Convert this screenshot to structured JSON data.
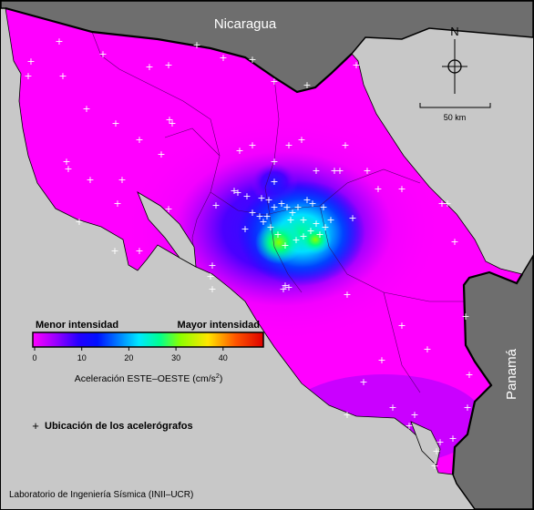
{
  "neighbors": {
    "north": "Nicaragua",
    "south_east": "Panamá"
  },
  "north_arrow": {
    "label": "N",
    "icon": "compass-crosshair-icon"
  },
  "scale_bar": {
    "label": "50 km"
  },
  "legend": {
    "low_label": "Menor intensidad",
    "high_label": "Mayor intensidad",
    "ticks": [
      "0",
      "10",
      "20",
      "30",
      "40"
    ],
    "axis_title": "Aceleración ESTE–OESTE (cm/s",
    "axis_unit_sup": "2",
    "axis_title_end": ")",
    "gradient_colors": [
      "#ff00ff",
      "#9a00ff",
      "#2400ff",
      "#0010ff",
      "#0088ff",
      "#00e8ff",
      "#00ff90",
      "#8cff00",
      "#ffe600",
      "#ff5500",
      "#dd0000"
    ]
  },
  "stations_legend": {
    "marker": "+",
    "label": "Ubicación de los acelerógrafos"
  },
  "credit": "Laboratorio de Ingeniería Sísmica (INII–UCR)",
  "colors": {
    "land_low": "#ff00ff",
    "neighbor_land": "#6e6e6e",
    "sea": "#c8c8c8",
    "marker": "#ffffff"
  }
}
